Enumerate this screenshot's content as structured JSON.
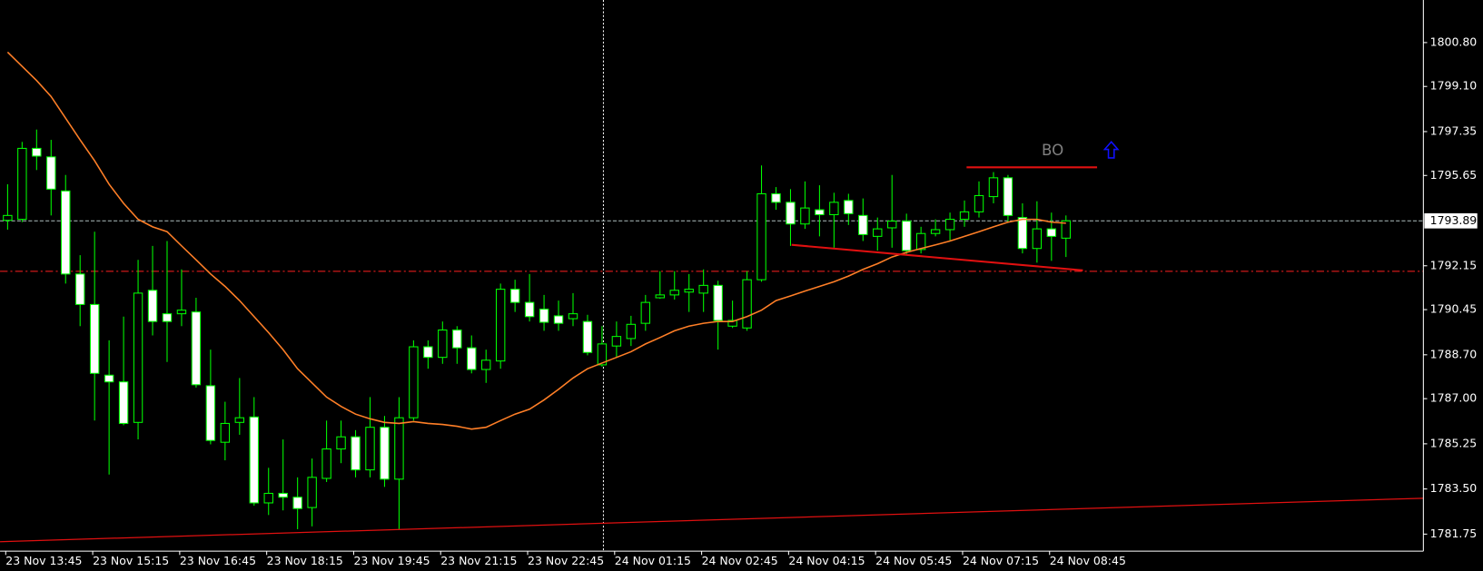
{
  "chart_data": {
    "type": "candlestick",
    "categories": [
      "23 Nov 13:45",
      null,
      null,
      null,
      null,
      null,
      "23 Nov 15:15",
      null,
      null,
      null,
      null,
      null,
      "23 Nov 16:45",
      null,
      null,
      null,
      null,
      null,
      "23 Nov 18:15",
      null,
      null,
      null,
      null,
      null,
      "23 Nov 19:45",
      null,
      null,
      null,
      null,
      null,
      "23 Nov 21:15",
      null,
      null,
      null,
      null,
      null,
      "23 Nov 22:45",
      null,
      null,
      null,
      null,
      null,
      "24 Nov 01:15",
      null,
      null,
      null,
      null,
      null,
      "24 Nov 02:45",
      null,
      null,
      null,
      null,
      null,
      "24 Nov 04:15",
      null,
      null,
      null,
      null,
      null,
      "24 Nov 05:45",
      null,
      null,
      null,
      null,
      null,
      "24 Nov 07:15",
      null,
      null,
      null,
      null,
      null,
      "24 Nov 08:45",
      null
    ],
    "open": [
      1793.91,
      1793.95,
      1796.7,
      1796.37,
      1795.05,
      1791.83,
      1790.65,
      1787.91,
      1787.65,
      1786.08,
      1791.2,
      1790.29,
      1790.29,
      1790.36,
      1787.5,
      1785.31,
      1786.08,
      1786.29,
      1782.96,
      1783.33,
      1783.18,
      1782.78,
      1783.91,
      1785.05,
      1785.52,
      1784.24,
      1785.89,
      1783.88,
      1786.26,
      1789.01,
      1788.6,
      1789.66,
      1788.97,
      1788.13,
      1788.46,
      1791.24,
      1790.73,
      1790.47,
      1790.21,
      1790.1,
      1789.99,
      1788.31,
      1789.04,
      1789.33,
      1789.92,
      1790.91,
      1791.02,
      1791.13,
      1791.09,
      1791.39,
      1789.81,
      1789.74,
      1791.61,
      1794.94,
      1794.61,
      1793.77,
      1794.32,
      1794.13,
      1794.68,
      1794.1,
      1793.29,
      1793.62,
      1793.88,
      1792.78,
      1793.4,
      1793.55,
      1793.95,
      1794.24,
      1794.83,
      1795.56,
      1794.02,
      1792.82,
      1793.58,
      1793.22
    ],
    "high": [
      1795.31,
      1796.95,
      1797.43,
      1797.03,
      1795.67,
      1792.56,
      1793.47,
      1789.26,
      1790.18,
      1792.38,
      1792.92,
      1793.11,
      1792.01,
      1790.91,
      1788.9,
      1786.88,
      1787.8,
      1787.06,
      1784.32,
      1785.42,
      1783.95,
      1784.68,
      1786.15,
      1786.15,
      1785.78,
      1787.06,
      1786.33,
      1787.06,
      1789.26,
      1789.26,
      1789.99,
      1789.81,
      1789.45,
      1788.9,
      1791.46,
      1791.61,
      1791.83,
      1791.02,
      1790.8,
      1791.09,
      1790.25,
      1789.81,
      1789.99,
      1790.21,
      1791.02,
      1791.94,
      1791.94,
      1791.83,
      1792.01,
      1791.57,
      1790.8,
      1791.94,
      1796.04,
      1795.2,
      1795.12,
      1795.42,
      1795.27,
      1794.98,
      1794.94,
      1794.76,
      1794.02,
      1795.67,
      1794.17,
      1793.66,
      1793.95,
      1794.21,
      1794.68,
      1795.42,
      1795.78,
      1795.67,
      1794.57,
      1794.65,
      1794.21,
      1794.1
    ],
    "low": [
      1793.55,
      1793.84,
      1795.86,
      1794.1,
      1791.46,
      1789.81,
      1786.15,
      1784.06,
      1785.97,
      1785.42,
      1789.45,
      1788.42,
      1789.81,
      1787.43,
      1785.23,
      1784.61,
      1785.6,
      1782.85,
      1782.49,
      1782.67,
      1781.94,
      1782.05,
      1783.77,
      1784.5,
      1783.95,
      1783.95,
      1783.58,
      1781.94,
      1786.15,
      1788.16,
      1788.35,
      1788.35,
      1787.98,
      1787.61,
      1788.16,
      1790.36,
      1789.99,
      1789.63,
      1789.63,
      1789.81,
      1788.68,
      1788.24,
      1788.6,
      1789.04,
      1789.63,
      1790.87,
      1790.84,
      1790.36,
      1790.36,
      1788.9,
      1789.74,
      1789.63,
      1791.53,
      1794.32,
      1792.92,
      1793.58,
      1793.29,
      1792.85,
      1793.73,
      1793.11,
      1792.74,
      1792.85,
      1792.56,
      1792.63,
      1793.29,
      1793.11,
      1793.66,
      1794.02,
      1794.57,
      1793.84,
      1792.63,
      1792.27,
      1792.34,
      1792.49
    ],
    "close": [
      1794.1,
      1796.7,
      1796.4,
      1795.12,
      1791.83,
      1790.65,
      1787.98,
      1787.65,
      1786.04,
      1791.09,
      1789.99,
      1789.99,
      1790.43,
      1787.54,
      1785.38,
      1786.04,
      1786.26,
      1782.96,
      1783.33,
      1783.18,
      1782.74,
      1783.95,
      1785.05,
      1785.52,
      1784.24,
      1785.89,
      1783.88,
      1786.26,
      1789.01,
      1788.6,
      1789.66,
      1788.97,
      1788.13,
      1788.49,
      1791.24,
      1790.73,
      1790.18,
      1789.96,
      1789.92,
      1790.29,
      1788.79,
      1789.12,
      1789.41,
      1789.88,
      1790.73,
      1791.02,
      1791.2,
      1791.24,
      1791.39,
      1790.03,
      1790.03,
      1791.61,
      1794.94,
      1794.61,
      1793.77,
      1794.39,
      1794.13,
      1794.61,
      1794.17,
      1793.36,
      1793.58,
      1793.88,
      1792.74,
      1793.4,
      1793.55,
      1793.95,
      1794.24,
      1794.87,
      1795.56,
      1794.1,
      1792.82,
      1793.58,
      1793.29,
      1793.89
    ],
    "ma": [
      1800.43,
      1799.88,
      1799.33,
      1798.71,
      1797.87,
      1797.03,
      1796.22,
      1795.31,
      1794.57,
      1793.95,
      1793.66,
      1793.47,
      1792.92,
      1792.38,
      1791.83,
      1791.35,
      1790.8,
      1790.18,
      1789.56,
      1788.9,
      1788.16,
      1787.61,
      1787.06,
      1786.7,
      1786.4,
      1786.22,
      1786.08,
      1786.04,
      1786.11,
      1786.04,
      1786.0,
      1785.93,
      1785.82,
      1785.89,
      1786.15,
      1786.4,
      1786.59,
      1786.95,
      1787.36,
      1787.8,
      1788.16,
      1788.38,
      1788.6,
      1788.82,
      1789.12,
      1789.37,
      1789.63,
      1789.81,
      1789.92,
      1789.99,
      1789.99,
      1790.18,
      1790.43,
      1790.8,
      1790.98,
      1791.17,
      1791.35,
      1791.53,
      1791.75,
      1792.01,
      1792.23,
      1792.49,
      1792.67,
      1792.82,
      1792.96,
      1793.11,
      1793.29,
      1793.47,
      1793.66,
      1793.84,
      1793.95,
      1793.95,
      1793.84,
      1793.8
    ],
    "up_color": "#000000",
    "down_color": "#ffffff",
    "wick_color": "#00ff00",
    "ma_color": "#ff7f27",
    "ylim": [
      1781.09,
      1802.45
    ],
    "yticks": [
      {
        "value": 1800.8,
        "label": "1800.80"
      },
      {
        "value": 1799.1,
        "label": "1799.10"
      },
      {
        "value": 1797.35,
        "label": "1797.35"
      },
      {
        "value": 1795.65,
        "label": "1795.65"
      },
      {
        "value": 1792.15,
        "label": "1792.15"
      },
      {
        "value": 1790.45,
        "label": "1790.45"
      },
      {
        "value": 1788.7,
        "label": "1788.70"
      },
      {
        "value": 1787.0,
        "label": "1787.00"
      },
      {
        "value": 1785.25,
        "label": "1785.25"
      },
      {
        "value": 1783.5,
        "label": "1783.50"
      },
      {
        "value": 1781.75,
        "label": "1781.75"
      }
    ],
    "bid": {
      "value": 1793.89,
      "label": "1793.89"
    },
    "annotation": "BO"
  }
}
